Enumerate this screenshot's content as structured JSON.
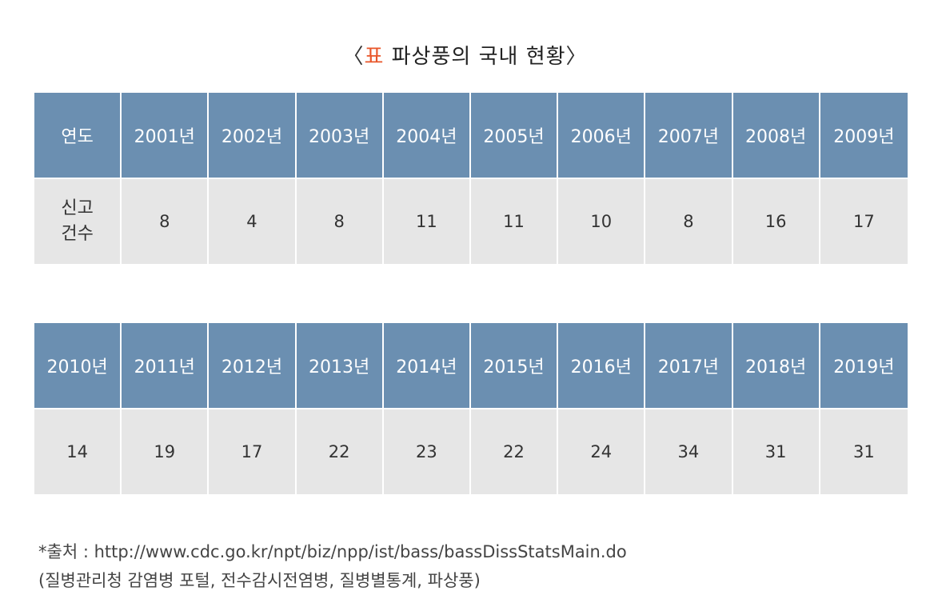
{
  "title": {
    "open": "〈",
    "tag": "표",
    "text": " 파상풍의 국내 현황",
    "close": "〉"
  },
  "table1": {
    "header_label": "연도",
    "row_label_line1": "신고",
    "row_label_line2": "건수",
    "years": [
      "2001년",
      "2002년",
      "2003년",
      "2004년",
      "2005년",
      "2006년",
      "2007년",
      "2008년",
      "2009년"
    ],
    "counts": [
      "8",
      "4",
      "8",
      "11",
      "11",
      "10",
      "8",
      "16",
      "17"
    ]
  },
  "table2": {
    "years": [
      "2010년",
      "2011년",
      "2012년",
      "2013년",
      "2014년",
      "2015년",
      "2016년",
      "2017년",
      "2018년",
      "2019년"
    ],
    "counts": [
      "14",
      "19",
      "17",
      "22",
      "23",
      "22",
      "24",
      "34",
      "31",
      "31"
    ]
  },
  "source": {
    "line1": "*출처 : http://www.cdc.go.kr/npt/biz/npp/ist/bass/bassDissStatsMain.do",
    "line2": "(질병관리청 감염병 포털, 전수감시전염병, 질병별통계, 파상풍)"
  },
  "colors": {
    "header_bg": "#6b8fb1",
    "body_bg": "#e6e6e6",
    "accent": "#e8562a"
  }
}
